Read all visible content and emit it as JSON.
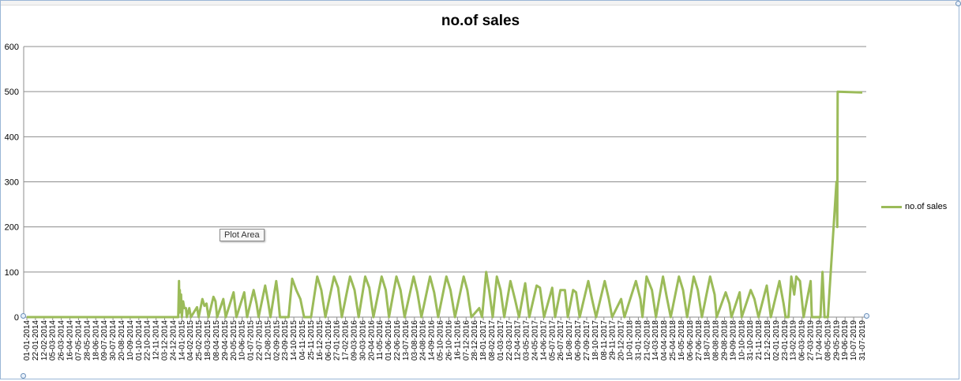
{
  "chart_data": {
    "type": "line",
    "title": "no.of sales",
    "ylim": [
      0,
      600
    ],
    "yticks": [
      0,
      100,
      200,
      300,
      400,
      500,
      600
    ],
    "grid": true,
    "legend_position": "right",
    "x_tick_labels": [
      "01-01-2014",
      "22-01-2014",
      "12-02-2014",
      "05-03-2014",
      "26-03-2014",
      "16-04-2014",
      "07-05-2014",
      "28-05-2014",
      "18-06-2014",
      "09-07-2014",
      "30-07-2014",
      "20-08-2014",
      "10-09-2014",
      "01-10-2014",
      "22-10-2014",
      "12-11-2014",
      "03-12-2014",
      "24-12-2014",
      "14-01-2015",
      "04-02-2015",
      "25-02-2015",
      "18-03-2015",
      "08-04-2015",
      "29-04-2015",
      "20-05-2015",
      "10-06-2015",
      "01-07-2015",
      "22-07-2015",
      "12-08-2015",
      "02-09-2015",
      "23-09-2015",
      "14-10-2015",
      "04-11-2015",
      "25-11-2015",
      "16-12-2015",
      "06-01-2016",
      "27-01-2016",
      "17-02-2016",
      "09-03-2016",
      "30-03-2016",
      "20-04-2016",
      "11-05-2016",
      "01-06-2016",
      "22-06-2016",
      "13-07-2016",
      "03-08-2016",
      "24-08-2016",
      "14-09-2016",
      "05-10-2016",
      "26-10-2016",
      "16-11-2016",
      "07-12-2016",
      "28-12-2016",
      "18-01-2017",
      "08-02-2017",
      "01-03-2017",
      "22-03-2017",
      "12-04-2017",
      "03-05-2017",
      "24-05-2017",
      "14-06-2017",
      "05-07-2017",
      "26-07-2017",
      "16-08-2017",
      "06-09-2017",
      "27-09-2017",
      "18-10-2017",
      "08-11-2017",
      "29-11-2017",
      "20-12-2017",
      "10-01-2018",
      "31-01-2018",
      "21-02-2018",
      "14-03-2018",
      "04-04-2018",
      "25-04-2018",
      "16-05-2018",
      "06-06-2018",
      "27-06-2018",
      "18-07-2018",
      "08-08-2018",
      "29-08-2018",
      "19-09-2018",
      "10-10-2018",
      "31-10-2018",
      "21-11-2018",
      "12-12-2018",
      "02-01-2019",
      "23-01-2019",
      "13-02-2019",
      "06-03-2019",
      "27-03-2019",
      "17-04-2019",
      "08-05-2019",
      "29-05-2019",
      "19-06-2019",
      "10-07-2019",
      "31-07-2019"
    ],
    "series": [
      {
        "name": "no.of sales",
        "color": "#9bbb59",
        "points": [
          [
            "01-01-2014",
            0
          ],
          [
            "24-12-2014",
            0
          ],
          [
            "05-01-2015",
            0
          ],
          [
            "07-01-2015",
            80
          ],
          [
            "08-01-2015",
            10
          ],
          [
            "09-01-2015",
            60
          ],
          [
            "10-01-2015",
            20
          ],
          [
            "12-01-2015",
            50
          ],
          [
            "14-01-2015",
            0
          ],
          [
            "17-01-2015",
            35
          ],
          [
            "20-01-2015",
            20
          ],
          [
            "24-01-2015",
            20
          ],
          [
            "26-01-2015",
            0
          ],
          [
            "01-02-2015",
            20
          ],
          [
            "05-02-2015",
            0
          ],
          [
            "20-02-2015",
            22
          ],
          [
            "24-02-2015",
            0
          ],
          [
            "05-03-2015",
            40
          ],
          [
            "10-03-2015",
            25
          ],
          [
            "15-03-2015",
            30
          ],
          [
            "20-03-2015",
            0
          ],
          [
            "01-04-2015",
            45
          ],
          [
            "06-04-2015",
            35
          ],
          [
            "10-04-2015",
            0
          ],
          [
            "25-04-2015",
            40
          ],
          [
            "01-05-2015",
            0
          ],
          [
            "20-05-2015",
            55
          ],
          [
            "27-05-2015",
            0
          ],
          [
            "15-06-2015",
            55
          ],
          [
            "22-06-2015",
            0
          ],
          [
            "08-07-2015",
            60
          ],
          [
            "15-07-2015",
            30
          ],
          [
            "20-07-2015",
            0
          ],
          [
            "05-08-2015",
            70
          ],
          [
            "12-08-2015",
            35
          ],
          [
            "18-08-2015",
            0
          ],
          [
            "01-09-2015",
            80
          ],
          [
            "05-09-2015",
            50
          ],
          [
            "10-09-2015",
            0
          ],
          [
            "01-10-2015",
            0
          ],
          [
            "10-10-2015",
            85
          ],
          [
            "20-10-2015",
            60
          ],
          [
            "30-10-2015",
            40
          ],
          [
            "08-11-2015",
            0
          ],
          [
            "25-11-2015",
            0
          ],
          [
            "10-12-2015",
            90
          ],
          [
            "20-12-2015",
            60
          ],
          [
            "30-12-2015",
            0
          ],
          [
            "20-01-2016",
            90
          ],
          [
            "30-01-2016",
            65
          ],
          [
            "08-02-2016",
            0
          ],
          [
            "28-02-2016",
            90
          ],
          [
            "10-03-2016",
            60
          ],
          [
            "20-03-2016",
            0
          ],
          [
            "05-04-2016",
            90
          ],
          [
            "15-04-2016",
            65
          ],
          [
            "25-04-2016",
            0
          ],
          [
            "15-05-2016",
            90
          ],
          [
            "25-05-2016",
            60
          ],
          [
            "02-06-2016",
            0
          ],
          [
            "20-06-2016",
            90
          ],
          [
            "30-06-2016",
            60
          ],
          [
            "10-07-2016",
            0
          ],
          [
            "01-08-2016",
            90
          ],
          [
            "10-08-2016",
            55
          ],
          [
            "20-08-2016",
            0
          ],
          [
            "10-09-2016",
            90
          ],
          [
            "20-09-2016",
            55
          ],
          [
            "30-09-2016",
            0
          ],
          [
            "20-10-2016",
            90
          ],
          [
            "30-10-2016",
            60
          ],
          [
            "10-11-2016",
            0
          ],
          [
            "01-12-2016",
            90
          ],
          [
            "10-12-2016",
            60
          ],
          [
            "20-12-2016",
            0
          ],
          [
            "08-01-2017",
            20
          ],
          [
            "15-01-2017",
            0
          ],
          [
            "25-01-2017",
            100
          ],
          [
            "01-02-2017",
            60
          ],
          [
            "10-02-2017",
            0
          ],
          [
            "20-02-2017",
            90
          ],
          [
            "01-03-2017",
            60
          ],
          [
            "10-03-2017",
            0
          ],
          [
            "25-03-2017",
            80
          ],
          [
            "05-04-2017",
            40
          ],
          [
            "15-04-2017",
            0
          ],
          [
            "30-04-2017",
            75
          ],
          [
            "10-05-2017",
            0
          ],
          [
            "28-05-2017",
            70
          ],
          [
            "05-06-2017",
            65
          ],
          [
            "15-06-2017",
            0
          ],
          [
            "05-07-2017",
            65
          ],
          [
            "12-07-2017",
            0
          ],
          [
            "25-07-2017",
            60
          ],
          [
            "05-08-2017",
            60
          ],
          [
            "12-08-2017",
            0
          ],
          [
            "25-08-2017",
            60
          ],
          [
            "01-09-2017",
            55
          ],
          [
            "10-09-2017",
            0
          ],
          [
            "01-10-2017",
            80
          ],
          [
            "10-10-2017",
            40
          ],
          [
            "20-10-2017",
            0
          ],
          [
            "10-11-2017",
            80
          ],
          [
            "20-11-2017",
            40
          ],
          [
            "28-11-2017",
            0
          ],
          [
            "20-12-2017",
            40
          ],
          [
            "28-12-2017",
            0
          ],
          [
            "25-01-2018",
            80
          ],
          [
            "05-02-2018",
            40
          ],
          [
            "10-02-2018",
            0
          ],
          [
            "20-02-2018",
            90
          ],
          [
            "05-03-2018",
            60
          ],
          [
            "15-03-2018",
            0
          ],
          [
            "01-04-2018",
            90
          ],
          [
            "10-04-2018",
            45
          ],
          [
            "20-04-2018",
            0
          ],
          [
            "10-05-2018",
            90
          ],
          [
            "20-05-2018",
            60
          ],
          [
            "30-05-2018",
            0
          ],
          [
            "15-06-2018",
            90
          ],
          [
            "25-06-2018",
            60
          ],
          [
            "05-07-2018",
            0
          ],
          [
            "25-07-2018",
            90
          ],
          [
            "05-08-2018",
            50
          ],
          [
            "10-08-2018",
            0
          ],
          [
            "01-09-2018",
            55
          ],
          [
            "10-09-2018",
            30
          ],
          [
            "15-09-2018",
            0
          ],
          [
            "05-10-2018",
            55
          ],
          [
            "10-10-2018",
            0
          ],
          [
            "01-11-2018",
            60
          ],
          [
            "10-11-2018",
            40
          ],
          [
            "20-11-2018",
            0
          ],
          [
            "10-12-2018",
            70
          ],
          [
            "20-12-2018",
            0
          ],
          [
            "10-01-2019",
            80
          ],
          [
            "20-01-2019",
            30
          ],
          [
            "25-01-2019",
            0
          ],
          [
            "01-02-2019",
            0
          ],
          [
            "08-02-2019",
            90
          ],
          [
            "15-02-2019",
            50
          ],
          [
            "20-02-2019",
            90
          ],
          [
            "01-03-2019",
            80
          ],
          [
            "10-03-2019",
            0
          ],
          [
            "27-03-2019",
            80
          ],
          [
            "30-03-2019",
            0
          ],
          [
            "20-04-2019",
            0
          ],
          [
            "25-04-2019",
            100
          ],
          [
            "30-04-2019",
            0
          ],
          [
            "08-05-2019",
            0
          ],
          [
            "29-05-2019",
            300
          ],
          [
            "31-05-2019",
            200
          ],
          [
            "01-06-2019",
            500
          ],
          [
            "31-07-2019",
            498
          ]
        ]
      }
    ],
    "annotations": [
      "Plot Area"
    ]
  }
}
